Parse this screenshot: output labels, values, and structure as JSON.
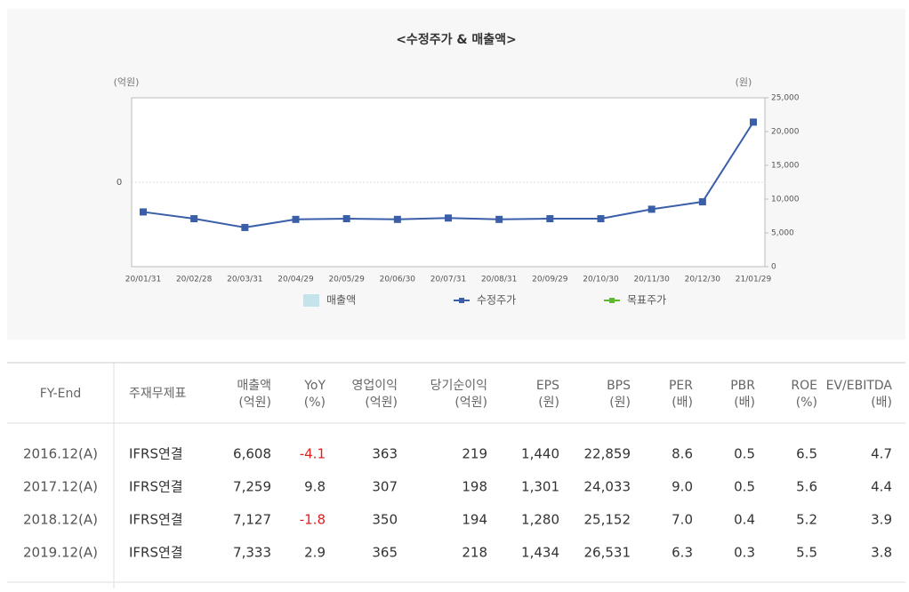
{
  "chart_data": {
    "type": "line",
    "title": "<수정주가 & 매출액>",
    "y_label": "(억원)",
    "y2_label": "(원)",
    "categories": [
      "20/01/31",
      "20/02/28",
      "20/03/31",
      "20/04/29",
      "20/05/29",
      "20/06/30",
      "20/07/31",
      "20/08/31",
      "20/09/29",
      "20/10/30",
      "20/11/30",
      "20/12/30",
      "21/01/29"
    ],
    "ylim": [
      -1,
      1
    ],
    "yticks": [
      0
    ],
    "y2lim": [
      0,
      25000
    ],
    "y2ticks": [
      0,
      {
        "value": 5000,
        "label": "5,000"
      },
      {
        "value": 10000,
        "label": "10,000"
      },
      {
        "value": 15000,
        "label": "15,000"
      },
      {
        "value": 20000,
        "label": "20,000"
      },
      {
        "value": 25000,
        "label": "25,000"
      }
    ],
    "series": [
      {
        "name": "매출액",
        "type": "bar",
        "color": "#c5e3ea",
        "values": [
          null,
          null,
          null,
          null,
          null,
          null,
          null,
          null,
          null,
          null,
          null,
          null,
          null
        ]
      },
      {
        "name": "수정주가",
        "type": "line",
        "axis": "y2",
        "color": "#3a5fa8",
        "values": [
          8100,
          7100,
          5800,
          7000,
          7100,
          7000,
          7200,
          7000,
          7100,
          7100,
          8500,
          9600,
          21400
        ]
      },
      {
        "name": "목표주가",
        "type": "line",
        "axis": "y2",
        "color": "#5cb82e",
        "values": [
          null,
          null,
          null,
          null,
          null,
          null,
          null,
          null,
          null,
          null,
          null,
          null,
          null
        ]
      }
    ]
  },
  "table": {
    "header": [
      [
        "FY-End"
      ],
      [
        "주재무제표"
      ],
      [
        "매출액",
        "(억원)"
      ],
      [
        "YoY",
        "(%)"
      ],
      [
        "영업이익",
        "(억원)"
      ],
      [
        "당기순이익",
        "(억원)"
      ],
      [
        "EPS",
        "(원)"
      ],
      [
        "BPS",
        "(원)"
      ],
      [
        "PER",
        "(배)"
      ],
      [
        "PBR",
        "(배)"
      ],
      [
        "ROE",
        "(%)"
      ],
      [
        "EV/EBITDA",
        "(배)"
      ]
    ],
    "rows": [
      [
        "2016.12(A)",
        "IFRS연결",
        "6,608",
        "-4.1",
        "363",
        "219",
        "1,440",
        "22,859",
        "8.6",
        "0.5",
        "6.5",
        "4.7"
      ],
      [
        "2017.12(A)",
        "IFRS연결",
        "7,259",
        "9.8",
        "307",
        "198",
        "1,301",
        "24,033",
        "9.0",
        "0.5",
        "5.6",
        "4.4"
      ],
      [
        "2018.12(A)",
        "IFRS연결",
        "7,127",
        "-1.8",
        "350",
        "194",
        "1,280",
        "25,152",
        "7.0",
        "0.4",
        "5.2",
        "3.9"
      ],
      [
        "2019.12(A)",
        "IFRS연결",
        "7,333",
        "2.9",
        "365",
        "218",
        "1,434",
        "26,531",
        "6.3",
        "0.3",
        "5.5",
        "3.8"
      ]
    ]
  }
}
